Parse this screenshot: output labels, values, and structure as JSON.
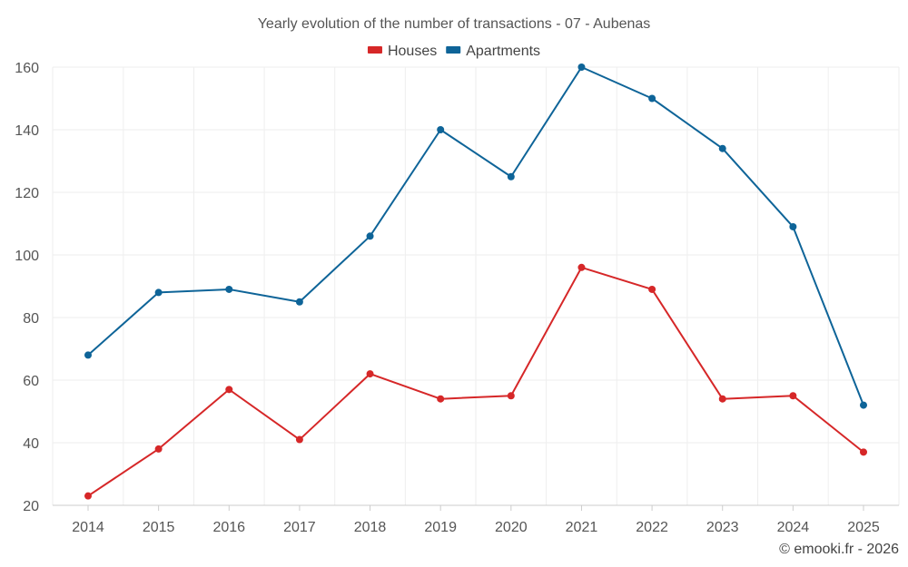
{
  "chart_data": {
    "type": "line",
    "title": "Yearly evolution of the number of transactions - 07 - Aubenas",
    "categories": [
      "2014",
      "2015",
      "2016",
      "2017",
      "2018",
      "2019",
      "2020",
      "2021",
      "2022",
      "2023",
      "2024",
      "2025"
    ],
    "series": [
      {
        "name": "Houses",
        "color": "#d62728",
        "values": [
          23,
          38,
          57,
          41,
          62,
          54,
          55,
          96,
          89,
          54,
          55,
          37
        ]
      },
      {
        "name": "Apartments",
        "color": "#0e6498",
        "values": [
          68,
          88,
          89,
          85,
          106,
          140,
          125,
          160,
          150,
          134,
          109,
          52
        ]
      }
    ],
    "ylim": [
      20,
      160
    ],
    "yticks": [
      20,
      40,
      60,
      80,
      100,
      120,
      140,
      160
    ],
    "grid": true,
    "legend": "top-center"
  },
  "credit": "© emooki.fr - 2026"
}
